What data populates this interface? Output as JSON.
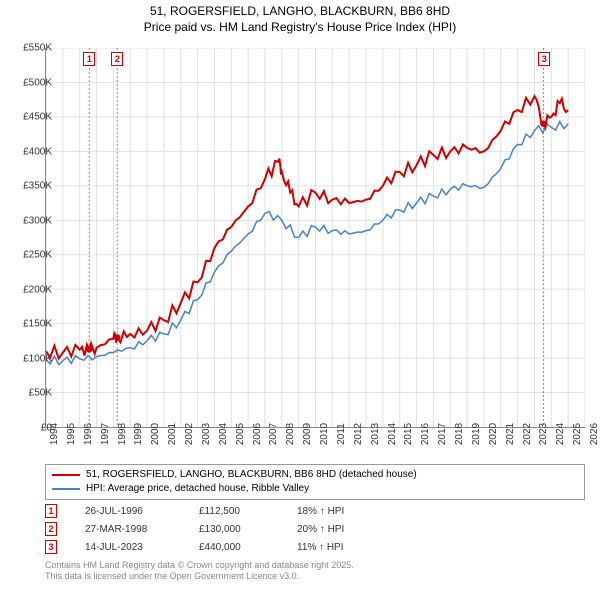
{
  "title_line1": "51, ROGERSFIELD, LANGHO, BLACKBURN, BB6 8HD",
  "title_line2": "Price paid vs. HM Land Registry's House Price Index (HPI)",
  "chart": {
    "type": "line",
    "background_color": "#ffffff",
    "grid_color": "#e0e0e0",
    "axis_color": "#888888",
    "label_fontsize": 10,
    "x": {
      "min": 1994,
      "max": 2026,
      "ticks": [
        1994,
        1995,
        1996,
        1997,
        1998,
        1999,
        2000,
        2001,
        2002,
        2003,
        2004,
        2005,
        2006,
        2007,
        2008,
        2009,
        2010,
        2011,
        2012,
        2013,
        2014,
        2015,
        2016,
        2017,
        2018,
        2019,
        2020,
        2021,
        2022,
        2023,
        2024,
        2025,
        2026
      ]
    },
    "y": {
      "min": 0,
      "max": 550000,
      "tick_step": 50000,
      "tick_labels": [
        "£0",
        "£50K",
        "£100K",
        "£150K",
        "£200K",
        "£250K",
        "£300K",
        "£350K",
        "£400K",
        "£450K",
        "£500K",
        "£550K"
      ]
    },
    "series": [
      {
        "name": "price_paid",
        "label": "51, ROGERSFIELD, LANGHO, BLACKBURN, BB6 8HD (detached house)",
        "color": "#cc0000",
        "line_width": 2,
        "data": [
          [
            1994,
            110000
          ],
          [
            1995,
            108000
          ],
          [
            1996,
            112000
          ],
          [
            1996.57,
            112500
          ],
          [
            1997,
            115000
          ],
          [
            1998,
            128000
          ],
          [
            1998.23,
            130000
          ],
          [
            1999,
            135000
          ],
          [
            2000,
            140000
          ],
          [
            2001,
            155000
          ],
          [
            2002,
            180000
          ],
          [
            2003,
            210000
          ],
          [
            2004,
            260000
          ],
          [
            2005,
            290000
          ],
          [
            2006,
            320000
          ],
          [
            2007,
            360000
          ],
          [
            2007.8,
            385000
          ],
          [
            2008,
            370000
          ],
          [
            2008.5,
            340000
          ],
          [
            2009,
            320000
          ],
          [
            2010,
            340000
          ],
          [
            2011,
            330000
          ],
          [
            2012,
            325000
          ],
          [
            2013,
            330000
          ],
          [
            2014,
            350000
          ],
          [
            2015,
            370000
          ],
          [
            2016,
            380000
          ],
          [
            2017,
            395000
          ],
          [
            2018,
            400000
          ],
          [
            2019,
            405000
          ],
          [
            2020,
            400000
          ],
          [
            2021,
            430000
          ],
          [
            2022,
            460000
          ],
          [
            2023,
            480000
          ],
          [
            2023.53,
            440000
          ],
          [
            2024,
            450000
          ],
          [
            2024.5,
            470000
          ],
          [
            2025,
            460000
          ]
        ]
      },
      {
        "name": "hpi",
        "label": "HPI: Average price, detached house, Ribble Valley",
        "color": "#4682c4",
        "line_width": 1.5,
        "data": [
          [
            1994,
            98000
          ],
          [
            1995,
            96000
          ],
          [
            1996,
            99000
          ],
          [
            1997,
            102000
          ],
          [
            1998,
            108000
          ],
          [
            1999,
            115000
          ],
          [
            2000,
            125000
          ],
          [
            2001,
            135000
          ],
          [
            2002,
            155000
          ],
          [
            2003,
            185000
          ],
          [
            2004,
            225000
          ],
          [
            2005,
            255000
          ],
          [
            2006,
            280000
          ],
          [
            2007,
            310000
          ],
          [
            2008,
            300000
          ],
          [
            2009,
            275000
          ],
          [
            2010,
            290000
          ],
          [
            2011,
            285000
          ],
          [
            2012,
            280000
          ],
          [
            2013,
            285000
          ],
          [
            2014,
            300000
          ],
          [
            2015,
            315000
          ],
          [
            2016,
            325000
          ],
          [
            2017,
            335000
          ],
          [
            2018,
            345000
          ],
          [
            2019,
            350000
          ],
          [
            2020,
            348000
          ],
          [
            2021,
            375000
          ],
          [
            2022,
            410000
          ],
          [
            2023,
            430000
          ],
          [
            2024,
            435000
          ],
          [
            2025,
            440000
          ]
        ]
      }
    ],
    "markers": [
      {
        "num": "1",
        "x": 1996.57,
        "y": 112500
      },
      {
        "num": "2",
        "x": 1998.23,
        "y": 130000
      },
      {
        "num": "3",
        "x": 2023.53,
        "y": 440000
      }
    ]
  },
  "legend": {
    "items": [
      {
        "color": "#cc0000",
        "text": "51, ROGERSFIELD, LANGHO, BLACKBURN, BB6 8HD (detached house)"
      },
      {
        "color": "#4682c4",
        "text": "HPI: Average price, detached house, Ribble Valley"
      }
    ]
  },
  "sales": [
    {
      "num": "1",
      "date": "26-JUL-1996",
      "price": "£112,500",
      "hpi": "18% ↑ HPI"
    },
    {
      "num": "2",
      "date": "27-MAR-1998",
      "price": "£130,000",
      "hpi": "20% ↑ HPI"
    },
    {
      "num": "3",
      "date": "14-JUL-2023",
      "price": "£440,000",
      "hpi": "11% ↑ HPI"
    }
  ],
  "attribution_line1": "Contains HM Land Registry data © Crown copyright and database right 2025.",
  "attribution_line2": "This data is licensed under the Open Government Licence v3.0."
}
